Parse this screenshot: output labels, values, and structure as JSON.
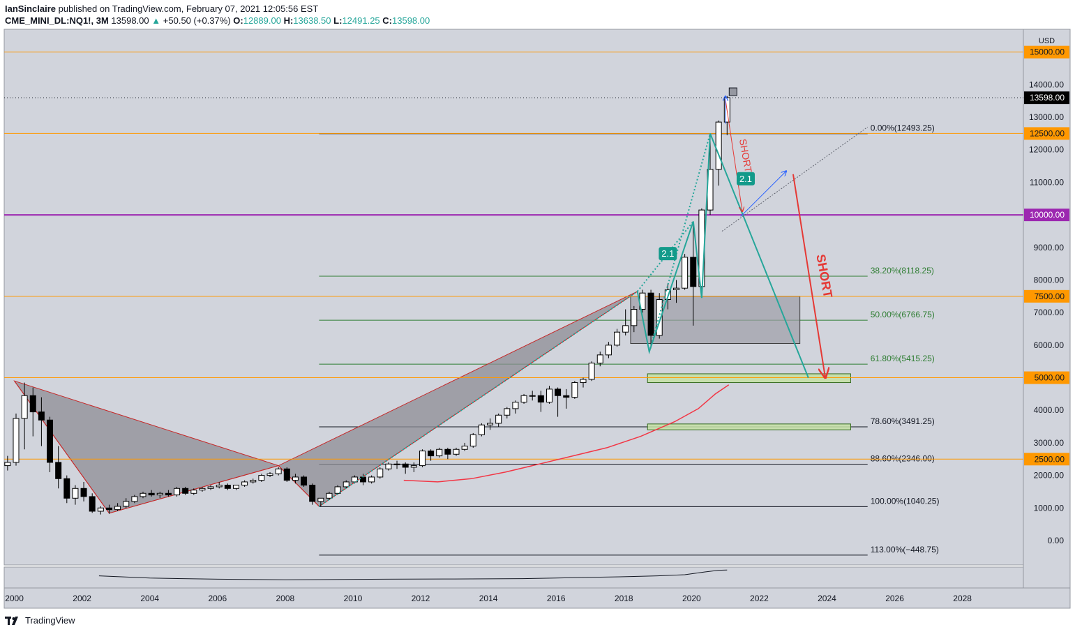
{
  "header": {
    "author": "IanSinclaire",
    "published_text": "published on TradingView.com, February 07, 2021 12:05:56 EST",
    "symbol": "CME_MINI_DL:NQ1!, 3M",
    "last": "13598.00",
    "change": "+50.50 (+0.37%)",
    "o_label": "O:",
    "o_value": "12889.00",
    "h_label": "H:",
    "h_value": "13638.50",
    "l_label": "L:",
    "l_value": "12491.25",
    "c_label": "C:",
    "c_value": "13598.00"
  },
  "footer": {
    "logo_text": "TradingView"
  },
  "colors": {
    "plot_bg": "#d1d4dc",
    "orange": "#ff9800",
    "purple": "#9c27b0",
    "fib_green": "#4caf50",
    "teal": "#26a69a",
    "red": "#e53935",
    "blue": "#2962ff",
    "harmonic_fill": "#8e8e95",
    "zone_green": "#c5e1a5"
  },
  "chart_data": {
    "type": "candlestick",
    "currency_label": "USD",
    "xlim": [
      1999.7,
      2029.8
    ],
    "ylim": [
      -750,
      15700
    ],
    "x_ticks": [
      "2000",
      "2002",
      "2004",
      "2006",
      "2008",
      "2010",
      "2012",
      "2014",
      "2016",
      "2018",
      "2020",
      "2022",
      "2024",
      "2026",
      "2028"
    ],
    "y_ticks": [
      "0.00",
      "1000.00",
      "2000.00",
      "3000.00",
      "4000.00",
      "5000.00",
      "6000.00",
      "7000.00",
      "8000.00",
      "9000.00",
      "10000.00",
      "11000.00",
      "12000.00",
      "13000.00",
      "14000.00"
    ],
    "last_price": {
      "value": 13598,
      "label": "13598.00"
    },
    "horizontal_levels": [
      {
        "value": 15000,
        "label": "15000.00",
        "color": "orange"
      },
      {
        "value": 12500,
        "label": "12500.00",
        "color": "orange"
      },
      {
        "value": 10000,
        "label": "10000.00",
        "color": "purple"
      },
      {
        "value": 7500,
        "label": "7500.00",
        "color": "orange"
      },
      {
        "value": 5000,
        "label": "5000.00",
        "color": "orange"
      },
      {
        "value": 2500,
        "label": "2500.00",
        "color": "orange"
      }
    ],
    "fib_levels": [
      {
        "value": 12493.25,
        "label": "0.00%(12493.25)"
      },
      {
        "value": 8118.25,
        "label": "38.20%(8118.25)"
      },
      {
        "value": 6766.75,
        "label": "50.00%(6766.75)"
      },
      {
        "value": 5415.25,
        "label": "61.80%(5415.25)"
      },
      {
        "value": 3491.25,
        "label": "78.60%(3491.25)"
      },
      {
        "value": 2346.0,
        "label": "88.60%(2346.00)"
      },
      {
        "value": 1040.25,
        "label": "100.00%(1040.25)"
      },
      {
        "value": -448.75,
        "label": "113.00%(−448.75)"
      }
    ],
    "annotations": [
      {
        "text": "2.1",
        "x": 2019.3,
        "y": 8800
      },
      {
        "text": "2.1",
        "x": 2021.6,
        "y": 11100
      },
      {
        "text": "SHORT",
        "x": 2021.5,
        "y": 11800
      },
      {
        "text": "SHORT",
        "x": 2023.8,
        "y": 8100
      }
    ],
    "candles": [
      {
        "x": 1999.8,
        "o": 2300,
        "h": 2600,
        "c": 2400,
        "l": 2150
      },
      {
        "x": 2000.05,
        "o": 2400,
        "h": 3900,
        "c": 3750,
        "l": 2300
      },
      {
        "x": 2000.3,
        "o": 3750,
        "h": 4850,
        "c": 4450,
        "l": 2800
      },
      {
        "x": 2000.55,
        "o": 4450,
        "h": 4700,
        "c": 3950,
        "l": 3200
      },
      {
        "x": 2000.8,
        "o": 3950,
        "h": 4400,
        "c": 3700,
        "l": 2900
      },
      {
        "x": 2001.05,
        "o": 3700,
        "h": 3800,
        "c": 2400,
        "l": 2100
      },
      {
        "x": 2001.3,
        "o": 2400,
        "h": 2900,
        "c": 1900,
        "l": 1600
      },
      {
        "x": 2001.55,
        "o": 1900,
        "h": 2000,
        "c": 1300,
        "l": 1150
      },
      {
        "x": 2001.8,
        "o": 1300,
        "h": 1700,
        "c": 1600,
        "l": 1100
      },
      {
        "x": 2002.05,
        "o": 1600,
        "h": 1800,
        "c": 1350,
        "l": 1200
      },
      {
        "x": 2002.3,
        "o": 1350,
        "h": 1450,
        "c": 900,
        "l": 850
      },
      {
        "x": 2002.55,
        "o": 900,
        "h": 1050,
        "c": 1000,
        "l": 800
      },
      {
        "x": 2002.8,
        "o": 1000,
        "h": 1100,
        "c": 950,
        "l": 820
      },
      {
        "x": 2003.05,
        "o": 950,
        "h": 1150,
        "c": 1050,
        "l": 900
      },
      {
        "x": 2003.3,
        "o": 1050,
        "h": 1300,
        "c": 1200,
        "l": 1000
      },
      {
        "x": 2003.55,
        "o": 1200,
        "h": 1400,
        "c": 1350,
        "l": 1150
      },
      {
        "x": 2003.8,
        "o": 1350,
        "h": 1500,
        "c": 1450,
        "l": 1300
      },
      {
        "x": 2004.05,
        "o": 1450,
        "h": 1550,
        "c": 1400,
        "l": 1350
      },
      {
        "x": 2004.3,
        "o": 1400,
        "h": 1500,
        "c": 1450,
        "l": 1300
      },
      {
        "x": 2004.55,
        "o": 1450,
        "h": 1550,
        "c": 1400,
        "l": 1350
      },
      {
        "x": 2004.8,
        "o": 1400,
        "h": 1650,
        "c": 1600,
        "l": 1350
      },
      {
        "x": 2005.05,
        "o": 1600,
        "h": 1650,
        "c": 1450,
        "l": 1400
      },
      {
        "x": 2005.3,
        "o": 1450,
        "h": 1600,
        "c": 1550,
        "l": 1400
      },
      {
        "x": 2005.55,
        "o": 1550,
        "h": 1650,
        "c": 1600,
        "l": 1500
      },
      {
        "x": 2005.8,
        "o": 1600,
        "h": 1700,
        "c": 1650,
        "l": 1550
      },
      {
        "x": 2006.05,
        "o": 1650,
        "h": 1800,
        "c": 1700,
        "l": 1600
      },
      {
        "x": 2006.3,
        "o": 1700,
        "h": 1750,
        "c": 1600,
        "l": 1550
      },
      {
        "x": 2006.55,
        "o": 1600,
        "h": 1700,
        "c": 1700,
        "l": 1550
      },
      {
        "x": 2006.8,
        "o": 1700,
        "h": 1850,
        "c": 1800,
        "l": 1650
      },
      {
        "x": 2007.05,
        "o": 1800,
        "h": 1900,
        "c": 1850,
        "l": 1750
      },
      {
        "x": 2007.3,
        "o": 1850,
        "h": 2050,
        "c": 2000,
        "l": 1800
      },
      {
        "x": 2007.55,
        "o": 2000,
        "h": 2100,
        "c": 2050,
        "l": 1950
      },
      {
        "x": 2007.8,
        "o": 2050,
        "h": 2250,
        "c": 2200,
        "l": 2000
      },
      {
        "x": 2008.05,
        "o": 2200,
        "h": 2250,
        "c": 1850,
        "l": 1800
      },
      {
        "x": 2008.3,
        "o": 1850,
        "h": 2050,
        "c": 1950,
        "l": 1750
      },
      {
        "x": 2008.55,
        "o": 1950,
        "h": 2000,
        "c": 1700,
        "l": 1650
      },
      {
        "x": 2008.8,
        "o": 1700,
        "h": 1750,
        "c": 1200,
        "l": 1100
      },
      {
        "x": 2009.05,
        "o": 1200,
        "h": 1300,
        "c": 1300,
        "l": 1050
      },
      {
        "x": 2009.3,
        "o": 1300,
        "h": 1500,
        "c": 1450,
        "l": 1250
      },
      {
        "x": 2009.55,
        "o": 1450,
        "h": 1700,
        "c": 1650,
        "l": 1400
      },
      {
        "x": 2009.8,
        "o": 1650,
        "h": 1850,
        "c": 1800,
        "l": 1600
      },
      {
        "x": 2010.05,
        "o": 1800,
        "h": 2000,
        "c": 1950,
        "l": 1750
      },
      {
        "x": 2010.3,
        "o": 1950,
        "h": 2050,
        "c": 1800,
        "l": 1700
      },
      {
        "x": 2010.55,
        "o": 1800,
        "h": 2000,
        "c": 1950,
        "l": 1750
      },
      {
        "x": 2010.8,
        "o": 1950,
        "h": 2250,
        "c": 2200,
        "l": 1900
      },
      {
        "x": 2011.05,
        "o": 2200,
        "h": 2400,
        "c": 2350,
        "l": 2150
      },
      {
        "x": 2011.3,
        "o": 2350,
        "h": 2450,
        "c": 2350,
        "l": 2200
      },
      {
        "x": 2011.55,
        "o": 2350,
        "h": 2400,
        "c": 2250,
        "l": 2050
      },
      {
        "x": 2011.8,
        "o": 2250,
        "h": 2400,
        "c": 2300,
        "l": 2100
      },
      {
        "x": 2012.05,
        "o": 2300,
        "h": 2800,
        "c": 2750,
        "l": 2250
      },
      {
        "x": 2012.3,
        "o": 2750,
        "h": 2800,
        "c": 2600,
        "l": 2450
      },
      {
        "x": 2012.55,
        "o": 2600,
        "h": 2850,
        "c": 2800,
        "l": 2550
      },
      {
        "x": 2012.8,
        "o": 2800,
        "h": 2850,
        "c": 2650,
        "l": 2500
      },
      {
        "x": 2013.05,
        "o": 2650,
        "h": 2850,
        "c": 2800,
        "l": 2600
      },
      {
        "x": 2013.3,
        "o": 2800,
        "h": 3000,
        "c": 2900,
        "l": 2750
      },
      {
        "x": 2013.55,
        "o": 2900,
        "h": 3300,
        "c": 3250,
        "l": 2850
      },
      {
        "x": 2013.8,
        "o": 3250,
        "h": 3600,
        "c": 3550,
        "l": 3200
      },
      {
        "x": 2014.05,
        "o": 3550,
        "h": 3750,
        "c": 3600,
        "l": 3400
      },
      {
        "x": 2014.3,
        "o": 3600,
        "h": 3900,
        "c": 3850,
        "l": 3500
      },
      {
        "x": 2014.55,
        "o": 3850,
        "h": 4100,
        "c": 4050,
        "l": 3750
      },
      {
        "x": 2014.8,
        "o": 4050,
        "h": 4300,
        "c": 4250,
        "l": 3900
      },
      {
        "x": 2015.05,
        "o": 4250,
        "h": 4500,
        "c": 4450,
        "l": 4200
      },
      {
        "x": 2015.3,
        "o": 4450,
        "h": 4600,
        "c": 4450,
        "l": 4300
      },
      {
        "x": 2015.55,
        "o": 4450,
        "h": 4600,
        "c": 4250,
        "l": 3950
      },
      {
        "x": 2015.8,
        "o": 4250,
        "h": 4750,
        "c": 4650,
        "l": 4200
      },
      {
        "x": 2016.05,
        "o": 4650,
        "h": 4700,
        "c": 4450,
        "l": 3800
      },
      {
        "x": 2016.3,
        "o": 4450,
        "h": 4650,
        "c": 4400,
        "l": 4050
      },
      {
        "x": 2016.55,
        "o": 4400,
        "h": 4900,
        "c": 4850,
        "l": 4350
      },
      {
        "x": 2016.8,
        "o": 4850,
        "h": 5000,
        "c": 4950,
        "l": 4700
      },
      {
        "x": 2017.05,
        "o": 4950,
        "h": 5500,
        "c": 5450,
        "l": 4900
      },
      {
        "x": 2017.3,
        "o": 5450,
        "h": 5800,
        "c": 5700,
        "l": 5350
      },
      {
        "x": 2017.55,
        "o": 5700,
        "h": 6100,
        "c": 6000,
        "l": 5600
      },
      {
        "x": 2017.8,
        "o": 6000,
        "h": 6500,
        "c": 6400,
        "l": 5950
      },
      {
        "x": 2018.05,
        "o": 6400,
        "h": 7100,
        "c": 6600,
        "l": 6300
      },
      {
        "x": 2018.3,
        "o": 6600,
        "h": 7200,
        "c": 7100,
        "l": 6400
      },
      {
        "x": 2018.55,
        "o": 7100,
        "h": 7700,
        "c": 7600,
        "l": 7000
      },
      {
        "x": 2018.8,
        "o": 7600,
        "h": 7700,
        "c": 6300,
        "l": 5900
      },
      {
        "x": 2019.05,
        "o": 6300,
        "h": 7600,
        "c": 7400,
        "l": 6200
      },
      {
        "x": 2019.3,
        "o": 7400,
        "h": 7900,
        "c": 7700,
        "l": 7100
      },
      {
        "x": 2019.55,
        "o": 7700,
        "h": 8000,
        "c": 7750,
        "l": 7300
      },
      {
        "x": 2019.8,
        "o": 7750,
        "h": 8800,
        "c": 8700,
        "l": 7700
      },
      {
        "x": 2020.05,
        "o": 8700,
        "h": 9800,
        "c": 7800,
        "l": 6600
      },
      {
        "x": 2020.3,
        "o": 7800,
        "h": 10200,
        "c": 10150,
        "l": 7700
      },
      {
        "x": 2020.55,
        "o": 10150,
        "h": 12400,
        "c": 11400,
        "l": 10000
      },
      {
        "x": 2020.8,
        "o": 11400,
        "h": 12900,
        "c": 12850,
        "l": 10900
      },
      {
        "x": 2021.05,
        "o": 12850,
        "h": 13650,
        "c": 13600,
        "l": 12450
      }
    ],
    "moving_average": {
      "color": "red",
      "points": [
        [
          2011.5,
          1850
        ],
        [
          2012.5,
          1800
        ],
        [
          2013.5,
          1900
        ],
        [
          2014.5,
          2100
        ],
        [
          2015.5,
          2350
        ],
        [
          2016.5,
          2600
        ],
        [
          2017.5,
          2850
        ],
        [
          2018.5,
          3200
        ],
        [
          2019.5,
          3650
        ],
        [
          2020.2,
          4050
        ],
        [
          2020.7,
          4500
        ],
        [
          2021.1,
          4780
        ]
      ]
    },
    "volume_line": {
      "points": [
        [
          2002.5,
          900
        ],
        [
          2004,
          700
        ],
        [
          2006,
          600
        ],
        [
          2008,
          550
        ],
        [
          2009,
          560
        ],
        [
          2011,
          600
        ],
        [
          2013,
          620
        ],
        [
          2015,
          650
        ],
        [
          2016,
          700
        ],
        [
          2017,
          760
        ],
        [
          2018,
          820
        ],
        [
          2019,
          900
        ],
        [
          2019.8,
          1000
        ],
        [
          2020.4,
          1250
        ],
        [
          2020.8,
          1400
        ],
        [
          2021.05,
          1420
        ]
      ]
    },
    "harmonic_pattern": {
      "points": [
        [
          2000,
          4900
        ],
        [
          2002.8,
          840
        ],
        [
          2007.8,
          2300
        ],
        [
          2009,
          1050
        ],
        [
          2018.4,
          7650
        ]
      ],
      "fill_triangles": [
        [
          0,
          1,
          2
        ],
        [
          2,
          3,
          4
        ]
      ]
    },
    "teal_path": {
      "points": [
        [
          2018.4,
          7650
        ],
        [
          2018.75,
          5800
        ],
        [
          2020.05,
          9800
        ],
        [
          2020.3,
          7450
        ],
        [
          2020.55,
          12500
        ],
        [
          2023.45,
          5000
        ]
      ]
    },
    "teal_dotted": [
      {
        "points": [
          [
            2009,
            1050
          ],
          [
            2018.4,
            7650
          ]
        ]
      },
      {
        "points": [
          [
            2018.4,
            7650
          ],
          [
            2020.05,
            9800
          ]
        ]
      },
      {
        "points": [
          [
            2018.75,
            5800
          ],
          [
            2020.55,
            12500
          ]
        ]
      }
    ],
    "gray_dotted": {
      "points": [
        [
          2020.9,
          9500
        ],
        [
          2025.2,
          12700
        ]
      ]
    },
    "rectangles": [
      {
        "x0": 2018.2,
        "x1": 2023.2,
        "y0": 6050,
        "y1": 7500,
        "style": "gray"
      },
      {
        "x0": 2018.7,
        "x1": 2024.7,
        "y0": 4850,
        "y1": 5120,
        "style": "green"
      },
      {
        "x0": 2018.7,
        "x1": 2024.7,
        "y0": 3400,
        "y1": 3580,
        "style": "green"
      }
    ],
    "arrows": [
      {
        "from": [
          2021.0,
          13550
        ],
        "to": [
          2021.5,
          10100
        ],
        "color": "red",
        "width": 1
      },
      {
        "from": [
          2021.45,
          9950
        ],
        "to": [
          2022.8,
          11350
        ],
        "color": "blue",
        "width": 1
      },
      {
        "from": [
          2023.0,
          11250
        ],
        "to": [
          2023.95,
          5000
        ],
        "color": "red",
        "width": 2
      },
      {
        "from": [
          2021.0,
          12800
        ],
        "to": [
          2021.0,
          13650
        ],
        "color": "blue",
        "width": 1
      }
    ]
  }
}
